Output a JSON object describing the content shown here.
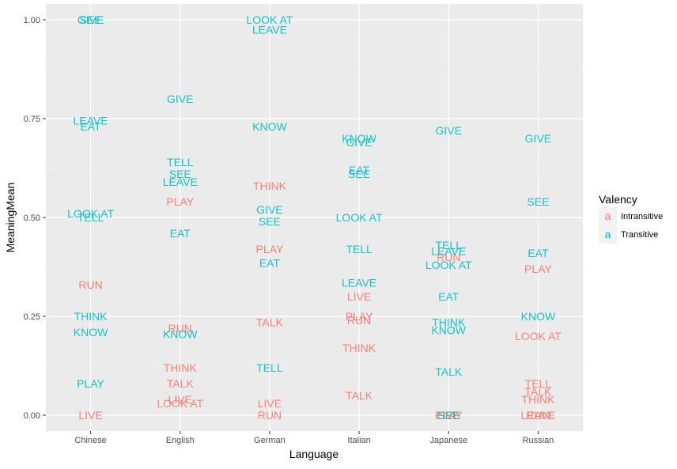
{
  "chart_data": {
    "type": "scatter",
    "xlabel": "Language",
    "ylabel": "MeaningMean",
    "categories": [
      "Chinese",
      "English",
      "German",
      "Italian",
      "Japanese",
      "Russian"
    ],
    "ylim": [
      -0.04,
      1.04
    ],
    "yticks": [
      0.0,
      0.25,
      0.5,
      0.75,
      1.0
    ],
    "ytick_labels": [
      "0.00",
      "0.25",
      "0.50",
      "0.75",
      "1.00"
    ],
    "grid": true,
    "legend": {
      "title": "Valency",
      "placement": "right",
      "glyph": "a",
      "entries": [
        {
          "name": "Intransitive",
          "color": "#F8766D"
        },
        {
          "name": "Transitive",
          "color": "#00BFC4"
        }
      ]
    },
    "series": [
      {
        "name": "Intransitive",
        "color": "#F8766D",
        "points": [
          {
            "x": "Chinese",
            "y": 0.33,
            "label": "RUN"
          },
          {
            "x": "Chinese",
            "y": 0.0,
            "label": "LIVE"
          },
          {
            "x": "English",
            "y": 0.54,
            "label": "PLAY"
          },
          {
            "x": "English",
            "y": 0.22,
            "label": "RUN"
          },
          {
            "x": "English",
            "y": 0.12,
            "label": "THINK"
          },
          {
            "x": "English",
            "y": 0.08,
            "label": "TALK"
          },
          {
            "x": "English",
            "y": 0.04,
            "label": "LIVE"
          },
          {
            "x": "English",
            "y": 0.03,
            "label": "LOOK AT"
          },
          {
            "x": "German",
            "y": 0.58,
            "label": "THINK"
          },
          {
            "x": "German",
            "y": 0.42,
            "label": "PLAY"
          },
          {
            "x": "German",
            "y": 0.235,
            "label": "TALK"
          },
          {
            "x": "German",
            "y": 0.03,
            "label": "LIVE"
          },
          {
            "x": "German",
            "y": 0.0,
            "label": "RUN"
          },
          {
            "x": "Italian",
            "y": 0.3,
            "label": "LIVE"
          },
          {
            "x": "Italian",
            "y": 0.25,
            "label": "PLAY"
          },
          {
            "x": "Italian",
            "y": 0.24,
            "label": "RUN"
          },
          {
            "x": "Italian",
            "y": 0.17,
            "label": "THINK"
          },
          {
            "x": "Italian",
            "y": 0.05,
            "label": "TALK"
          },
          {
            "x": "Japanese",
            "y": 0.4,
            "label": "RUN"
          },
          {
            "x": "Japanese",
            "y": 0.0,
            "label": "PLAY"
          },
          {
            "x": "Japanese",
            "y": 0.0,
            "label": "LIVE"
          },
          {
            "x": "Russian",
            "y": 0.37,
            "label": "PLAY"
          },
          {
            "x": "Russian",
            "y": 0.2,
            "label": "LOOK AT"
          },
          {
            "x": "Russian",
            "y": 0.08,
            "label": "TELL"
          },
          {
            "x": "Russian",
            "y": 0.06,
            "label": "TALK"
          },
          {
            "x": "Russian",
            "y": 0.04,
            "label": "THINK"
          },
          {
            "x": "Russian",
            "y": 0.0,
            "label": "LEAVE"
          },
          {
            "x": "Russian",
            "y": 0.0,
            "label": "RUN"
          }
        ]
      },
      {
        "name": "Transitive",
        "color": "#00BFC4",
        "points": [
          {
            "x": "Chinese",
            "y": 1.0,
            "label": "GIVE"
          },
          {
            "x": "Chinese",
            "y": 1.0,
            "label": "SEE"
          },
          {
            "x": "Chinese",
            "y": 0.745,
            "label": "LEAVE"
          },
          {
            "x": "Chinese",
            "y": 0.73,
            "label": "EAT"
          },
          {
            "x": "Chinese",
            "y": 0.51,
            "label": "LOOK AT"
          },
          {
            "x": "Chinese",
            "y": 0.5,
            "label": "TELL"
          },
          {
            "x": "Chinese",
            "y": 0.25,
            "label": "THINK"
          },
          {
            "x": "Chinese",
            "y": 0.21,
            "label": "KNOW"
          },
          {
            "x": "Chinese",
            "y": 0.08,
            "label": "PLAY"
          },
          {
            "x": "English",
            "y": 0.8,
            "label": "GIVE"
          },
          {
            "x": "English",
            "y": 0.64,
            "label": "TELL"
          },
          {
            "x": "English",
            "y": 0.61,
            "label": "SEE"
          },
          {
            "x": "English",
            "y": 0.59,
            "label": "LEAVE"
          },
          {
            "x": "English",
            "y": 0.46,
            "label": "EAT"
          },
          {
            "x": "English",
            "y": 0.205,
            "label": "KNOW"
          },
          {
            "x": "German",
            "y": 1.0,
            "label": "LOOK AT"
          },
          {
            "x": "German",
            "y": 0.975,
            "label": "LEAVE"
          },
          {
            "x": "German",
            "y": 0.73,
            "label": "KNOW"
          },
          {
            "x": "German",
            "y": 0.52,
            "label": "GIVE"
          },
          {
            "x": "German",
            "y": 0.49,
            "label": "SEE"
          },
          {
            "x": "German",
            "y": 0.385,
            "label": "EAT"
          },
          {
            "x": "German",
            "y": 0.12,
            "label": "TELL"
          },
          {
            "x": "Italian",
            "y": 0.7,
            "label": "KNOW"
          },
          {
            "x": "Italian",
            "y": 0.69,
            "label": "GIVE"
          },
          {
            "x": "Italian",
            "y": 0.62,
            "label": "EAT"
          },
          {
            "x": "Italian",
            "y": 0.61,
            "label": "SEE"
          },
          {
            "x": "Italian",
            "y": 0.5,
            "label": "LOOK AT"
          },
          {
            "x": "Italian",
            "y": 0.42,
            "label": "TELL"
          },
          {
            "x": "Italian",
            "y": 0.335,
            "label": "LEAVE"
          },
          {
            "x": "Japanese",
            "y": 0.72,
            "label": "GIVE"
          },
          {
            "x": "Japanese",
            "y": 0.43,
            "label": "TELL"
          },
          {
            "x": "Japanese",
            "y": 0.415,
            "label": "LEAVE"
          },
          {
            "x": "Japanese",
            "y": 0.38,
            "label": "LOOK AT"
          },
          {
            "x": "Japanese",
            "y": 0.3,
            "label": "EAT"
          },
          {
            "x": "Japanese",
            "y": 0.235,
            "label": "THINK"
          },
          {
            "x": "Japanese",
            "y": 0.215,
            "label": "KNOW"
          },
          {
            "x": "Japanese",
            "y": 0.11,
            "label": "TALK"
          },
          {
            "x": "Japanese",
            "y": 0.0,
            "label": "SEE"
          },
          {
            "x": "Russian",
            "y": 0.7,
            "label": "GIVE"
          },
          {
            "x": "Russian",
            "y": 0.54,
            "label": "SEE"
          },
          {
            "x": "Russian",
            "y": 0.41,
            "label": "EAT"
          },
          {
            "x": "Russian",
            "y": 0.25,
            "label": "KNOW"
          }
        ]
      }
    ]
  }
}
